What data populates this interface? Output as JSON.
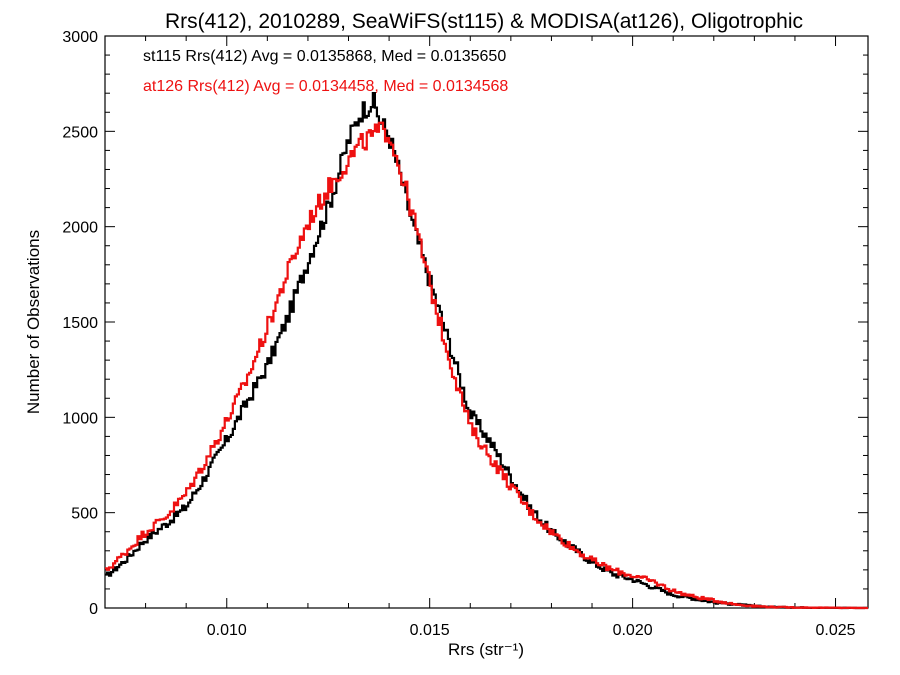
{
  "chart_data": {
    "type": "line",
    "title": "Rrs(412), 2010289, SeaWiFS(st115) & MODISA(at126), Oligotrophic",
    "xlabel": "Rrs (str⁻¹)",
    "ylabel": "Number of Observations",
    "xlim": [
      0.007,
      0.0258
    ],
    "ylim": [
      0,
      3000
    ],
    "x_ticks": [
      0.01,
      0.015,
      0.02,
      0.025
    ],
    "x_tick_labels": [
      "0.010",
      "0.015",
      "0.020",
      "0.025"
    ],
    "y_ticks": [
      0,
      500,
      1000,
      1500,
      2000,
      2500,
      3000
    ],
    "y_tick_labels": [
      "0",
      "500",
      "1000",
      "1500",
      "2000",
      "2500",
      "3000"
    ],
    "grid": false,
    "annotations": [
      {
        "text": "st115 Rrs(412) Avg = 0.0135868, Med = 0.0135650",
        "color": "#000000"
      },
      {
        "text": "at126 Rrs(412) Avg = 0.0134458, Med = 0.0134568",
        "color": "#ee1111"
      }
    ],
    "series": [
      {
        "color": "#000000",
        "x": [
          0.007,
          0.0075,
          0.008,
          0.0085,
          0.009,
          0.0095,
          0.01,
          0.0105,
          0.011,
          0.0115,
          0.012,
          0.0125,
          0.013,
          0.0133,
          0.0136,
          0.0138,
          0.014,
          0.0143,
          0.0146,
          0.015,
          0.0155,
          0.016,
          0.0165,
          0.017,
          0.0175,
          0.018,
          0.0185,
          0.019,
          0.0195,
          0.02,
          0.0205,
          0.021,
          0.0215,
          0.022,
          0.0225,
          0.023,
          0.0235,
          0.024,
          0.025,
          0.0258
        ],
        "y": [
          160,
          250,
          360,
          440,
          530,
          700,
          880,
          1080,
          1270,
          1520,
          1820,
          2100,
          2450,
          2600,
          2660,
          2550,
          2480,
          2250,
          2000,
          1720,
          1380,
          1020,
          870,
          690,
          520,
          400,
          320,
          240,
          180,
          150,
          110,
          70,
          50,
          30,
          20,
          10,
          5,
          3,
          1,
          0
        ]
      },
      {
        "color": "#ee1111",
        "x": [
          0.007,
          0.0075,
          0.008,
          0.0085,
          0.009,
          0.0095,
          0.01,
          0.0105,
          0.011,
          0.0115,
          0.012,
          0.0125,
          0.013,
          0.0133,
          0.0136,
          0.0138,
          0.014,
          0.0143,
          0.0146,
          0.015,
          0.0155,
          0.016,
          0.0165,
          0.017,
          0.0175,
          0.018,
          0.0185,
          0.019,
          0.0195,
          0.02,
          0.0205,
          0.021,
          0.0215,
          0.022,
          0.0225,
          0.023,
          0.0235,
          0.024,
          0.025,
          0.0258
        ],
        "y": [
          190,
          290,
          400,
          480,
          600,
          780,
          980,
          1200,
          1470,
          1760,
          2020,
          2200,
          2350,
          2430,
          2480,
          2500,
          2500,
          2280,
          2050,
          1700,
          1300,
          950,
          790,
          640,
          500,
          400,
          320,
          250,
          200,
          170,
          140,
          90,
          60,
          40,
          20,
          10,
          5,
          3,
          1,
          0
        ]
      }
    ]
  }
}
